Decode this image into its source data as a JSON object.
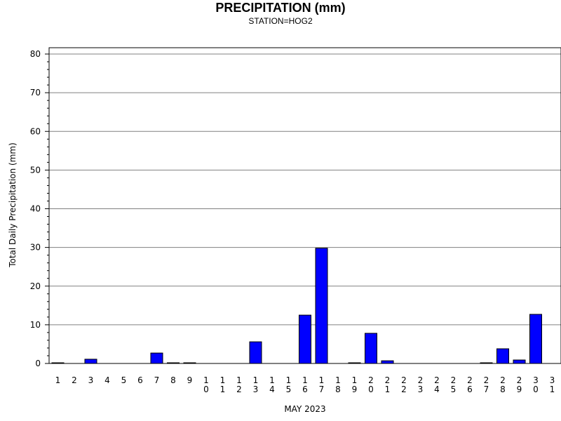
{
  "chart_data": {
    "type": "bar",
    "title": "PRECIPITATION (mm)",
    "subtitle": "STATION=HOG2",
    "xlabel": "MAY 2023",
    "ylabel": "Total Daily Precipitation (mm)",
    "ylim": [
      0,
      80
    ],
    "yticks": [
      0,
      10,
      20,
      30,
      40,
      50,
      60,
      70,
      80
    ],
    "grid": true,
    "bar_color": "#0000ff",
    "categories": [
      "1",
      "2",
      "3",
      "4",
      "5",
      "6",
      "7",
      "8",
      "9",
      "10",
      "11",
      "12",
      "13",
      "14",
      "15",
      "16",
      "17",
      "18",
      "19",
      "20",
      "21",
      "22",
      "23",
      "24",
      "25",
      "26",
      "27",
      "28",
      "29",
      "30",
      "31"
    ],
    "values": [
      0.1,
      0,
      1.1,
      0,
      0,
      0,
      2.7,
      0.1,
      0.1,
      0,
      0,
      0,
      5.6,
      0,
      0,
      12.5,
      29.8,
      0,
      0.1,
      7.8,
      0.7,
      0,
      0,
      0,
      0,
      0,
      0.1,
      3.8,
      0.9,
      12.7,
      0
    ]
  }
}
